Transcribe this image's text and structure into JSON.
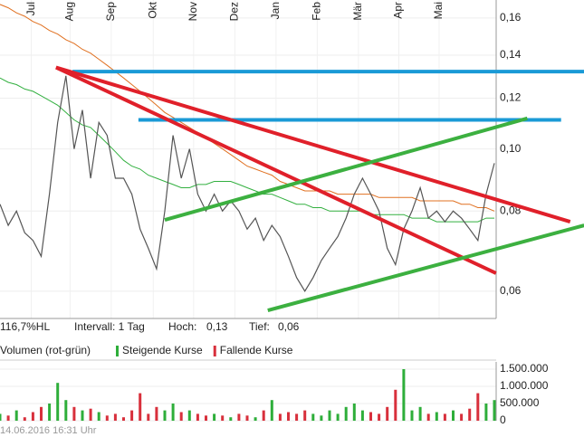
{
  "chart_data": [
    {
      "type": "line",
      "log_scale": true,
      "grid": true,
      "xlim": [
        0,
        60
      ],
      "xticks": [
        {
          "value": 3.8,
          "label": "Jul"
        },
        {
          "value": 8.5,
          "label": "Aug"
        },
        {
          "value": 13.5,
          "label": "Sep"
        },
        {
          "value": 18.6,
          "label": "Okt"
        },
        {
          "value": 23.5,
          "label": "Nov"
        },
        {
          "value": 28.5,
          "label": "Dez"
        },
        {
          "value": 33.5,
          "label": "Jan"
        },
        {
          "value": 38.5,
          "label": "Feb"
        },
        {
          "value": 43.5,
          "label": "Mär"
        },
        {
          "value": 48.4,
          "label": "Apr"
        },
        {
          "value": 53.3,
          "label": "Mai"
        }
      ],
      "ylim": [
        0.0544,
        0.1707
      ],
      "yticks": [
        {
          "value": 0.06,
          "label": "0,06"
        },
        {
          "value": 0.08,
          "label": "0,08"
        },
        {
          "value": 0.1,
          "label": "0,10"
        },
        {
          "value": 0.12,
          "label": "0,12"
        },
        {
          "value": 0.14,
          "label": "0,14"
        },
        {
          "value": 0.16,
          "label": "0,16"
        }
      ],
      "series": [
        {
          "color": "#555555",
          "values": [
            0.082,
            0.076,
            0.08,
            0.074,
            0.072,
            0.068,
            0.085,
            0.11,
            0.13,
            0.1,
            0.115,
            0.09,
            0.11,
            0.105,
            0.09,
            0.09,
            0.085,
            0.075,
            0.07,
            0.065,
            0.08,
            0.105,
            0.09,
            0.1,
            0.085,
            0.08,
            0.085,
            0.08,
            0.083,
            0.08,
            0.075,
            0.078,
            0.072,
            0.076,
            0.073,
            0.068,
            0.063,
            0.06,
            0.063,
            0.067,
            0.07,
            0.073,
            0.078,
            0.085,
            0.09,
            0.085,
            0.08,
            0.07,
            0.066,
            0.075,
            0.08,
            0.087,
            0.078,
            0.08,
            0.077,
            0.08,
            0.078,
            0.075,
            0.072,
            0.085,
            0.095
          ]
        },
        {
          "color": "#e07020",
          "values": [
            0.168,
            0.166,
            0.163,
            0.161,
            0.158,
            0.156,
            0.153,
            0.151,
            0.148,
            0.146,
            0.143,
            0.141,
            0.138,
            0.135,
            0.132,
            0.129,
            0.126,
            0.123,
            0.12,
            0.117,
            0.114,
            0.112,
            0.11,
            0.108,
            0.106,
            0.104,
            0.102,
            0.1,
            0.098,
            0.096,
            0.094,
            0.093,
            0.092,
            0.091,
            0.089,
            0.088,
            0.087,
            0.086,
            0.086,
            0.086,
            0.086,
            0.085,
            0.085,
            0.085,
            0.085,
            0.085,
            0.084,
            0.084,
            0.084,
            0.084,
            0.084,
            0.083,
            0.083,
            0.083,
            0.083,
            0.083,
            0.082,
            0.082,
            0.081,
            0.081,
            0.08
          ]
        },
        {
          "color": "#33b040",
          "values": [
            0.129,
            0.127,
            0.126,
            0.124,
            0.123,
            0.121,
            0.119,
            0.117,
            0.114,
            0.111,
            0.109,
            0.108,
            0.105,
            0.102,
            0.099,
            0.096,
            0.094,
            0.093,
            0.091,
            0.09,
            0.089,
            0.088,
            0.087,
            0.087,
            0.088,
            0.088,
            0.089,
            0.089,
            0.089,
            0.088,
            0.087,
            0.086,
            0.085,
            0.085,
            0.084,
            0.083,
            0.082,
            0.082,
            0.081,
            0.081,
            0.08,
            0.08,
            0.08,
            0.08,
            0.08,
            0.079,
            0.079,
            0.079,
            0.079,
            0.079,
            0.078,
            0.078,
            0.078,
            0.077,
            0.077,
            0.077,
            0.077,
            0.077,
            0.077,
            0.078,
            0.078
          ]
        }
      ],
      "trendlines": [
        {
          "color": "#1a9ad6",
          "x": [
            8.8,
            70.9
          ],
          "values": [
            0.132,
            0.132
          ]
        },
        {
          "color": "#1a9ad6",
          "x": [
            16.8,
            68.1
          ],
          "values": [
            0.111,
            0.111
          ]
        },
        {
          "color": "#e0202a",
          "x": [
            6.8,
            60.2
          ],
          "values": [
            0.134,
            0.064
          ]
        },
        {
          "color": "#e0202a",
          "x": [
            6.8,
            69.2
          ],
          "values": [
            0.134,
            0.077
          ]
        },
        {
          "color": "#3cb040",
          "x": [
            20,
            64
          ],
          "values": [
            0.0775,
            0.1116
          ]
        },
        {
          "color": "#3cb040",
          "x": [
            32.5,
            70.9
          ],
          "values": [
            0.056,
            0.076
          ]
        }
      ],
      "info": {
        "range": "116,7%HL",
        "interval": "Intervall: 1 Tag",
        "high_label": "Hoch:",
        "high": "0,13",
        "low_label": "Tief:",
        "low": "0,06"
      }
    },
    {
      "type": "bar",
      "title": "Volumen (rot-grün)",
      "xlim": [
        0,
        60
      ],
      "ylim": [
        0,
        1710000
      ],
      "yticks": [
        0,
        {
          "value": 500000,
          "label": "500.000"
        },
        {
          "value": 1000000,
          "label": "1.000.000"
        },
        {
          "value": 1500000,
          "label": "1.500.000"
        }
      ],
      "series": [
        {
          "name": "Steigende Kurse",
          "color": "#2eae3a",
          "values": [
            200000,
            null,
            300000,
            null,
            null,
            null,
            500000,
            1100000,
            600000,
            null,
            300000,
            null,
            250000,
            null,
            null,
            null,
            null,
            null,
            null,
            null,
            300000,
            500000,
            null,
            300000,
            null,
            null,
            200000,
            null,
            100000,
            null,
            null,
            100000,
            null,
            600000,
            null,
            null,
            null,
            null,
            200000,
            150000,
            300000,
            200000,
            400000,
            500000,
            300000,
            null,
            null,
            null,
            null,
            1500000,
            300000,
            400000,
            null,
            250000,
            null,
            300000,
            null,
            null,
            null,
            500000,
            600000
          ]
        },
        {
          "name": "Fallende Kurse",
          "color": "#d8303c",
          "values": [
            null,
            150000,
            null,
            100000,
            250000,
            400000,
            null,
            null,
            null,
            400000,
            null,
            350000,
            null,
            150000,
            200000,
            100000,
            300000,
            800000,
            200000,
            400000,
            null,
            null,
            250000,
            null,
            200000,
            150000,
            null,
            150000,
            null,
            200000,
            150000,
            null,
            300000,
            null,
            200000,
            250000,
            200000,
            300000,
            null,
            null,
            null,
            null,
            null,
            null,
            null,
            250000,
            200000,
            400000,
            900000,
            null,
            null,
            null,
            200000,
            null,
            200000,
            null,
            200000,
            350000,
            800000,
            null,
            null
          ]
        }
      ]
    }
  ],
  "timestamp": "14.06.2016 16:31 Uhr"
}
